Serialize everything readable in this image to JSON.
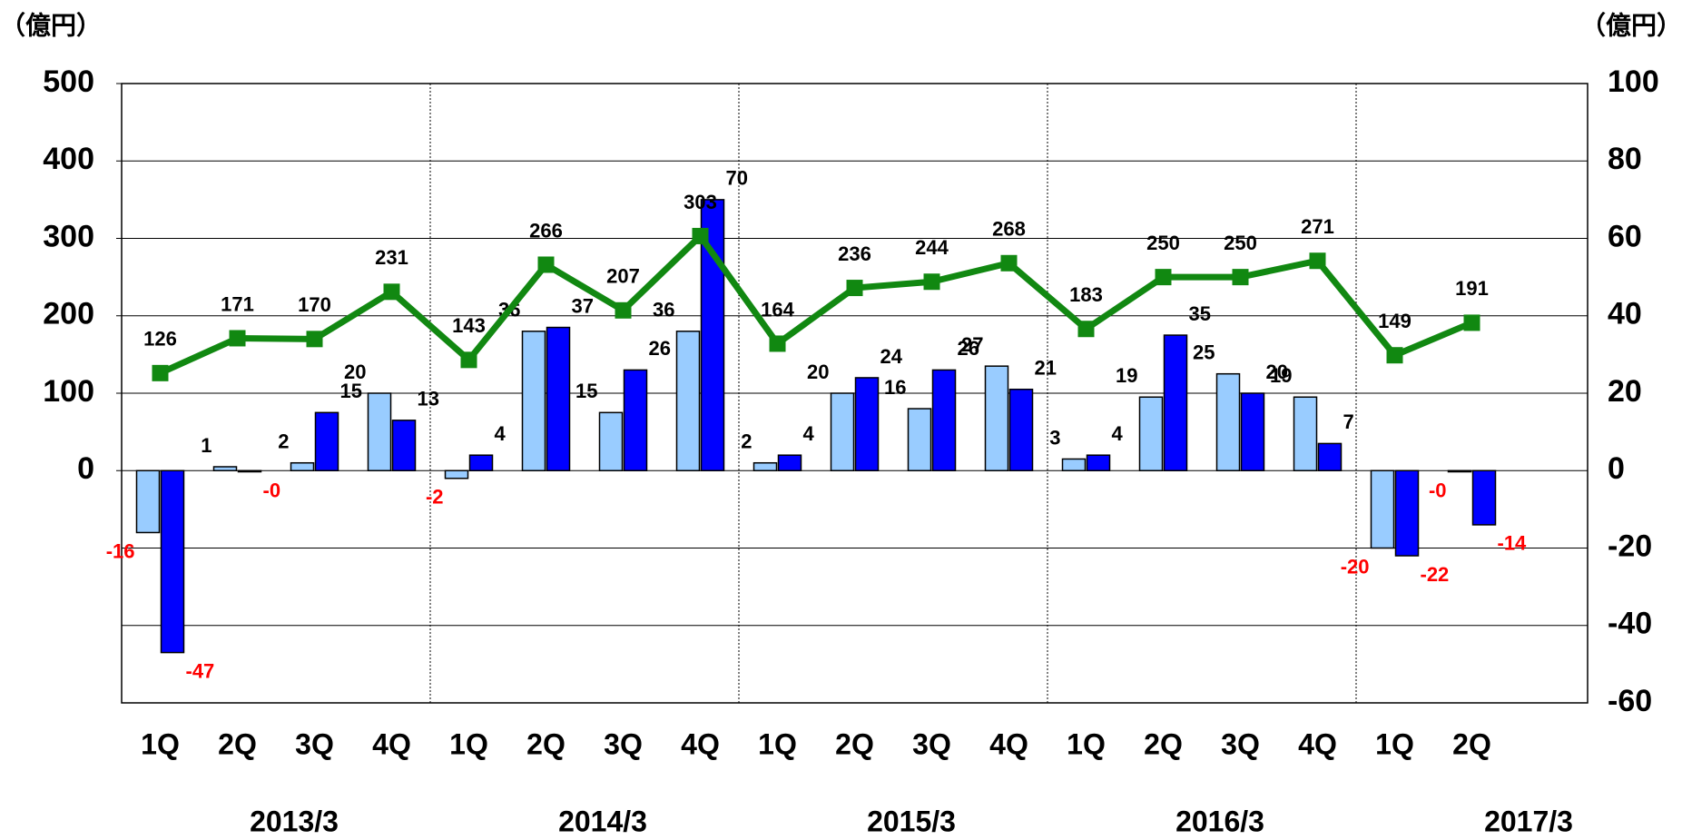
{
  "chart_data": {
    "type": "bar",
    "y_unit_label": "（億円）",
    "y2_unit_label": "（億円）",
    "categories": [
      "1Q",
      "2Q",
      "3Q",
      "4Q",
      "1Q",
      "2Q",
      "3Q",
      "4Q",
      "1Q",
      "2Q",
      "3Q",
      "4Q",
      "1Q",
      "2Q",
      "3Q",
      "4Q",
      "1Q",
      "2Q"
    ],
    "groups": [
      "2013/3",
      "2014/3",
      "2015/3",
      "2016/3",
      "2017/3"
    ],
    "ylim": [
      -300,
      500
    ],
    "yticks": [
      0,
      100,
      200,
      300,
      400,
      500
    ],
    "y2lim": [
      -60,
      100
    ],
    "y2ticks": [
      -60,
      -40,
      -20,
      0,
      20,
      40,
      60,
      80,
      100
    ],
    "grid": true,
    "negative_label_color": "#ff0000",
    "series": [
      {
        "type": "bar",
        "axis": "y2",
        "color": "#99ccff",
        "values": [
          -16,
          1,
          2,
          20,
          -2,
          36,
          15,
          36,
          2,
          20,
          16,
          27,
          3,
          19,
          25,
          19,
          -20,
          -0.3
        ],
        "value_labels": [
          "-16",
          "1",
          "2",
          "20",
          "-2",
          "36",
          "15",
          "36",
          "2",
          "20",
          "16",
          "27",
          "3",
          "19",
          "25",
          "19",
          "-20",
          "-0"
        ]
      },
      {
        "type": "bar",
        "axis": "y2",
        "color": "#0000ff",
        "values": [
          -47,
          -0.3,
          15,
          13,
          4,
          37,
          26,
          70,
          4,
          24,
          26,
          21,
          4,
          35,
          20,
          7,
          -22,
          -14
        ],
        "value_labels": [
          "-47",
          "-0",
          "15",
          "13",
          "4",
          "37",
          "26",
          "70",
          "4",
          "24",
          "26",
          "21",
          "4",
          "35",
          "20",
          "7",
          "-22",
          "-14"
        ]
      },
      {
        "type": "line",
        "color": "#118811",
        "values": [
          126,
          171,
          170,
          231,
          143,
          266,
          207,
          303,
          164,
          236,
          244,
          268,
          183,
          250,
          250,
          271,
          149,
          191
        ]
      }
    ]
  }
}
